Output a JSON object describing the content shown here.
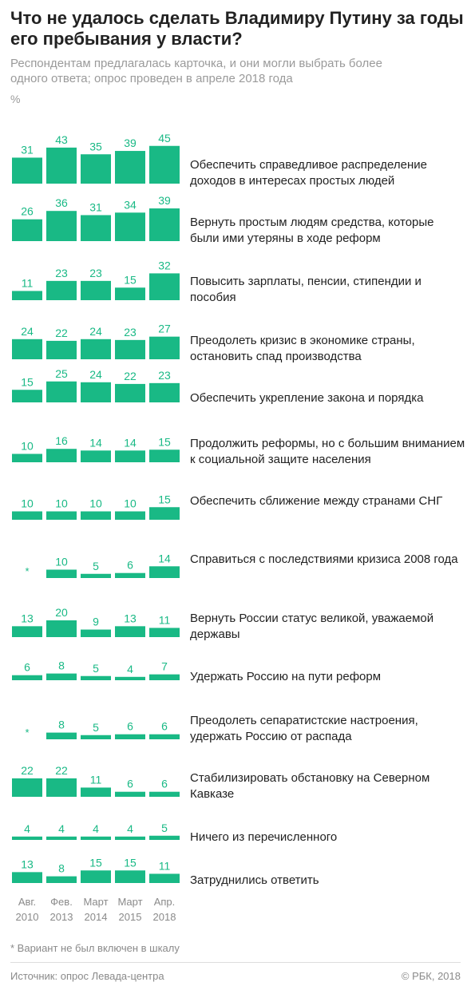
{
  "title": "Что не удалось сделать Владимиру Путину за годы его пребывания у власти?",
  "subtitle": "Респондентам предлагалась карточка, и они могли выбрать более одного ответа; опрос проведен в апреле 2018 года",
  "unit": "%",
  "footnote": "* Вариант не был включен в шкалу",
  "source": "Источник: опрос Левада-центра",
  "copyright": "© РБК, 2018",
  "colors": {
    "bar": "#19b985",
    "value_text": "#19b985",
    "text": "#222222",
    "muted": "#8a8a8a"
  },
  "chart_data": {
    "type": "bar",
    "x": [
      {
        "line1": "Авг.",
        "line2": "2010"
      },
      {
        "line1": "Фев.",
        "line2": "2013"
      },
      {
        "line1": "Март",
        "line2": "2014"
      },
      {
        "line1": "Март",
        "line2": "2015"
      },
      {
        "line1": "Апр.",
        "line2": "2018"
      }
    ],
    "not_included_marker": "*",
    "rows": [
      {
        "label": "Обеспечить справедливое распределение доходов в интересах простых людей",
        "values": [
          31,
          43,
          35,
          39,
          45
        ]
      },
      {
        "label": "Вернуть простым людям средства, которые были ими утеряны в ходе реформ",
        "values": [
          26,
          36,
          31,
          34,
          39
        ]
      },
      {
        "label": "Повысить зарплаты, пенсии, стипендии и пособия",
        "values": [
          11,
          23,
          23,
          15,
          32
        ]
      },
      {
        "label": "Преодолеть кризис в экономике страны, остановить спад производства",
        "values": [
          24,
          22,
          24,
          23,
          27
        ]
      },
      {
        "label": "Обеспечить укрепление закона и порядка",
        "values": [
          15,
          25,
          24,
          22,
          23
        ]
      },
      {
        "label": "Продолжить реформы, но с большим вниманием к социальной защите населения",
        "values": [
          10,
          16,
          14,
          14,
          15
        ]
      },
      {
        "label": "Обеспечить сближение между странами СНГ",
        "values": [
          10,
          10,
          10,
          10,
          15
        ]
      },
      {
        "label": "Справиться с последствиями кризиса 2008 года",
        "values": [
          null,
          10,
          5,
          6,
          14
        ]
      },
      {
        "label": "Вернуть России статус великой, уважаемой державы",
        "values": [
          13,
          20,
          9,
          13,
          11
        ]
      },
      {
        "label": "Удержать Россию на пути реформ",
        "values": [
          6,
          8,
          5,
          4,
          7
        ]
      },
      {
        "label": "Преодолеть сепаратистские настроения, удержать Россию от распада",
        "values": [
          null,
          8,
          5,
          6,
          6
        ]
      },
      {
        "label": "Стабилизировать обстановку на Северном Кавказе",
        "values": [
          22,
          22,
          11,
          6,
          6
        ]
      },
      {
        "label": "Ничего из перечисленного",
        "values": [
          4,
          4,
          4,
          4,
          5
        ]
      },
      {
        "label": "Затруднились ответить",
        "values": [
          13,
          8,
          15,
          15,
          11
        ]
      }
    ]
  }
}
